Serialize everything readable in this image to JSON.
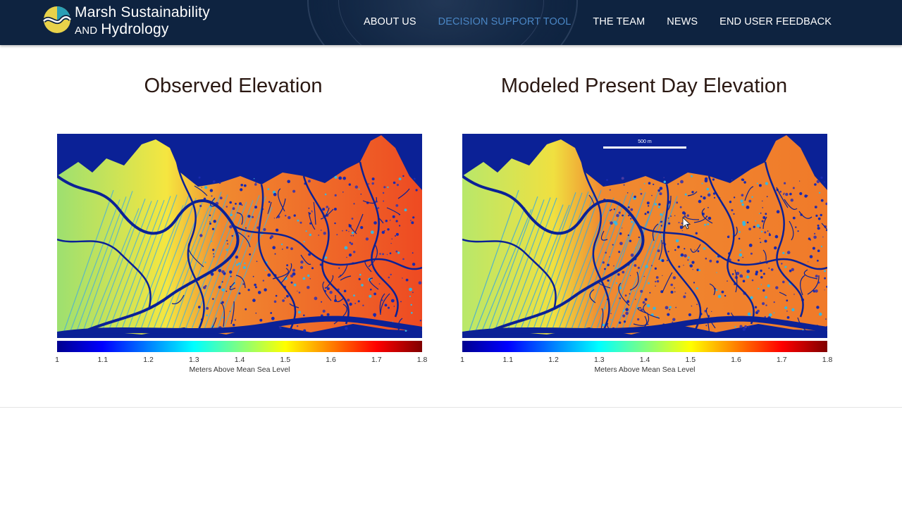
{
  "header": {
    "logo_line1": "Marsh Sustainability",
    "logo_line2_small": "AND",
    "logo_line2": "Hydrology",
    "nav": [
      {
        "label": "ABOUT US",
        "active": false
      },
      {
        "label": "DECISION SUPPORT TOOL",
        "active": true
      },
      {
        "label": "THE TEAM",
        "active": false
      },
      {
        "label": "NEWS",
        "active": false
      },
      {
        "label": "END USER FEEDBACK",
        "active": false
      }
    ],
    "colors": {
      "background": "#0e2340",
      "active_link": "#4a86c5",
      "logo_yellow": "#e8d24a",
      "logo_teal": "#2a9fb5"
    }
  },
  "figures": [
    {
      "title": "Observed Elevation",
      "colorbar_label": "Meters Above Mean Sea Level",
      "ticks": [
        "1",
        "1.1",
        "1.2",
        "1.3",
        "1.4",
        "1.5",
        "1.6",
        "1.7",
        "1.8"
      ]
    },
    {
      "title": "Modeled Present Day Elevation",
      "scale_label": "500 m",
      "colorbar_label": "Meters Above Mean Sea Level",
      "ticks": [
        "1",
        "1.1",
        "1.2",
        "1.3",
        "1.4",
        "1.5",
        "1.6",
        "1.7",
        "1.8"
      ]
    }
  ],
  "colormap": [
    "#00008f",
    "#0000ff",
    "#0080ff",
    "#00ffff",
    "#80ff80",
    "#ffff00",
    "#ff8000",
    "#ff0000",
    "#800000"
  ]
}
